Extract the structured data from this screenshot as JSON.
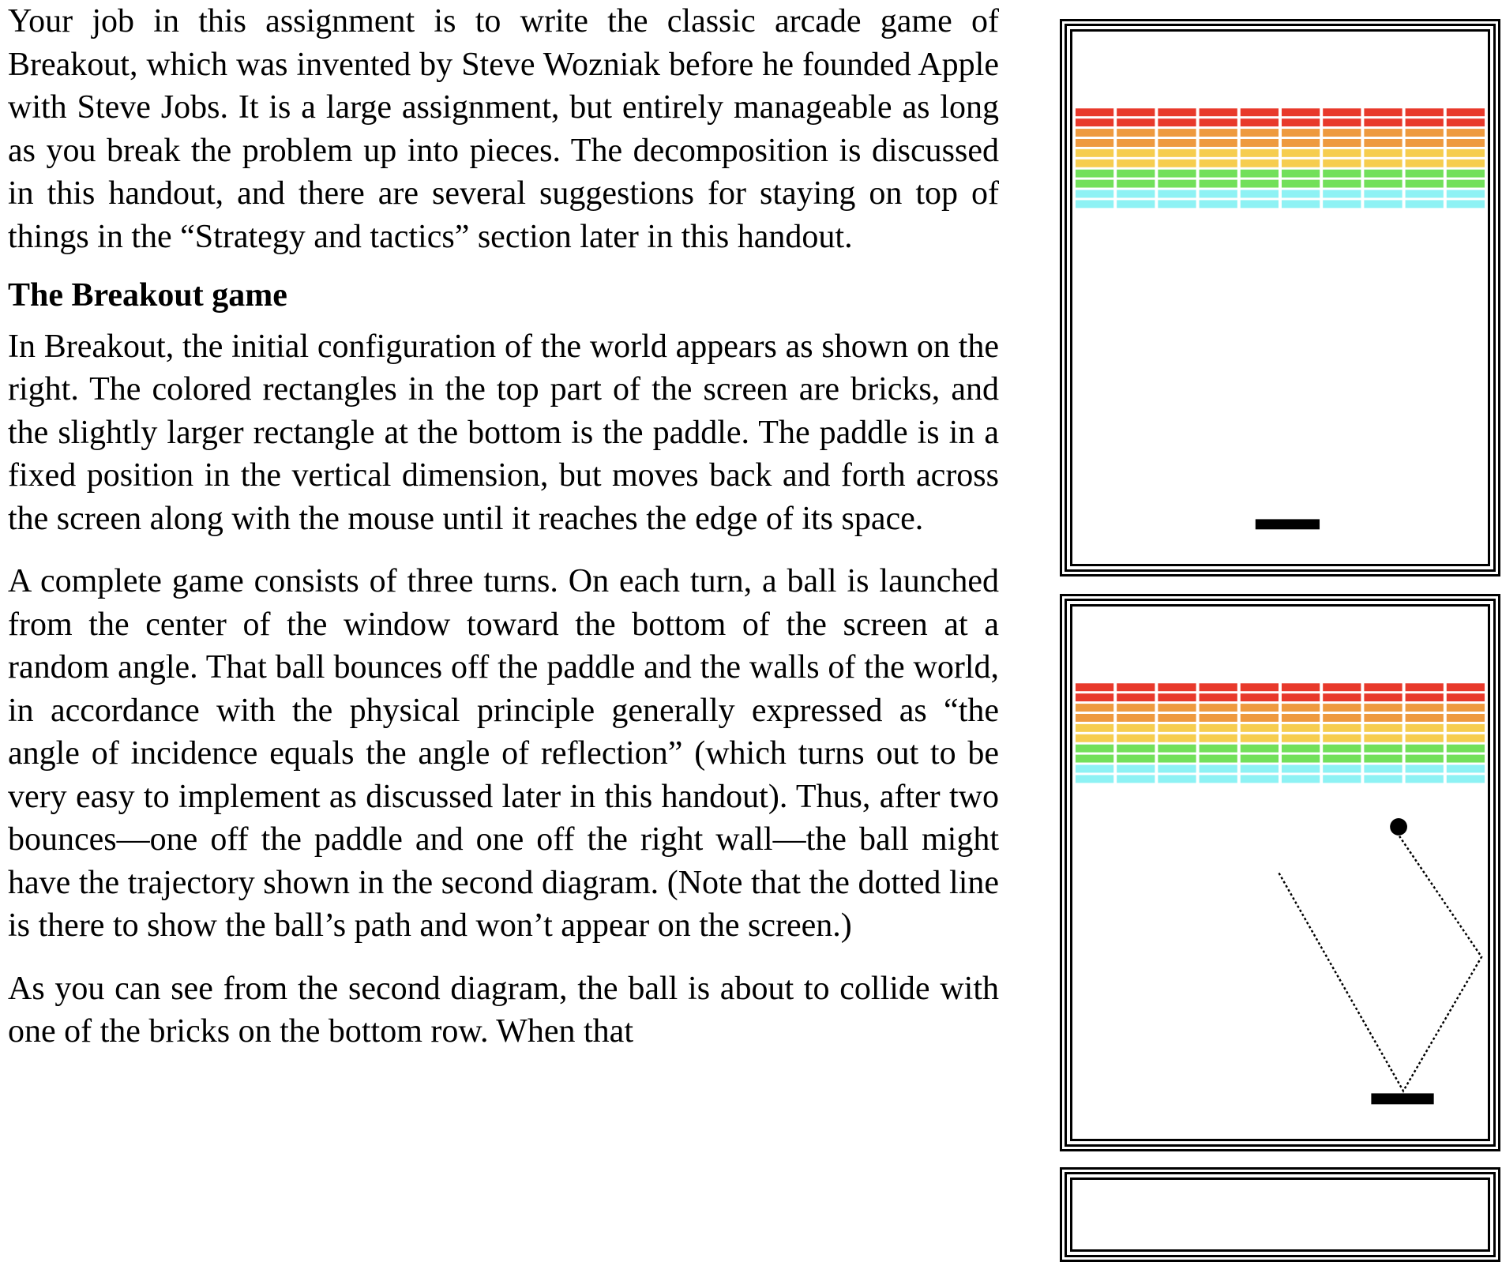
{
  "document": {
    "paragraph_intro": "Your job in this assignment is to write the classic arcade game of Breakout, which was invented by Steve Wozniak before he founded Apple with Steve Jobs.  It is a large assignment, but entirely manageable as long as you break the problem up into pieces.  The decomposition is discussed in this handout, and there are several suggestions for staying on top of things in the “Strategy and tactics” section later in this handout.",
    "section_heading": "The Breakout game",
    "paragraph_config": "In Breakout, the initial configuration of the world appears as shown on the right.  The colored rectangles in the top part of the screen are bricks, and the slightly larger rectangle at the bottom is the paddle.  The paddle is in a fixed position in the vertical dimension, but moves back and forth across the screen along with the mouse until it reaches the edge of its space.",
    "paragraph_turns": "A complete game consists of three turns.  On each turn, a ball is launched from the center of the window toward the bottom of the screen at a random angle.  That ball bounces off the paddle and the walls of the world, in accordance with the physical principle generally expressed as “the angle of incidence equals the angle of reflection” (which turns out to be very easy to implement as discussed later in this handout).  Thus, after two bounces—one off the paddle and one off the right wall—the ball might have the trajectory shown in the second diagram. (Note that the dotted line is there to show the ball’s path and won’t appear on the screen.)",
    "paragraph_collide": "As you can see from the second diagram, the ball is about to collide with one of the bricks on the bottom row.  When that"
  },
  "game_figures": {
    "brick_row_colors": [
      "#e8392b",
      "#e8392b",
      "#ee9a3f",
      "#ee9a3f",
      "#f6cd4f",
      "#f6cd4f",
      "#72e05a",
      "#72e05a",
      "#8ef2f4",
      "#8ef2f4"
    ],
    "bricks_per_row": 10,
    "paddle_color": "#000000",
    "ball_color": "#000000"
  }
}
